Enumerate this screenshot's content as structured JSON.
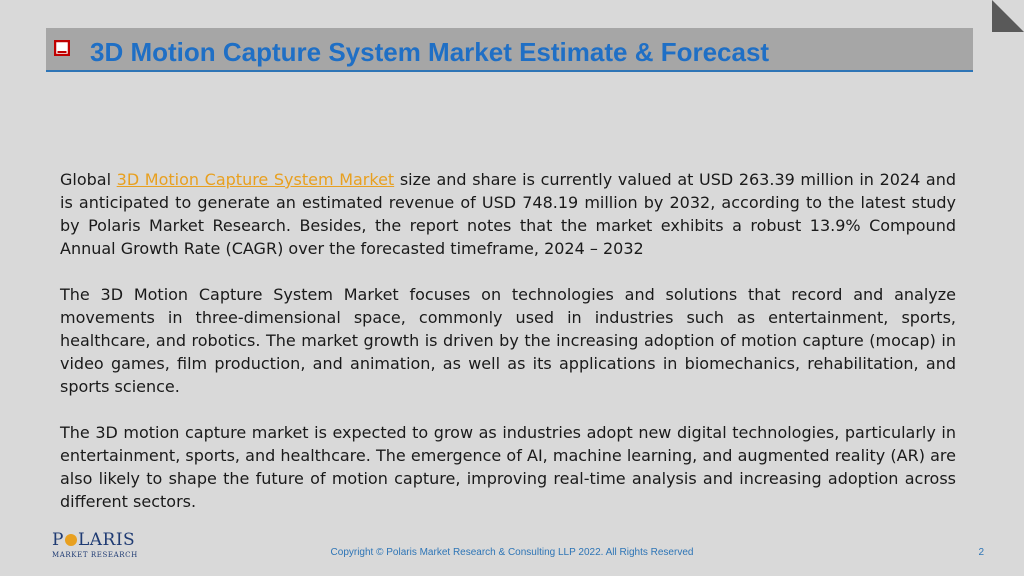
{
  "header": {
    "title": "3D Motion Capture System Market  Estimate & Forecast",
    "bullet_icon": "checkbox-icon"
  },
  "body": {
    "para1_prefix": "Global ",
    "para1_link": "3D Motion Capture System Market",
    "para1_rest": " size and share is currently valued at USD 263.39 million in 2024 and is anticipated to generate an estimated revenue of USD 748.19 million by 2032, according to the latest study by Polaris Market Research. Besides, the report notes that the market exhibits a robust 13.9% Compound Annual Growth Rate (CAGR) over the forecasted timeframe, 2024 – 2032",
    "para2": "The 3D Motion Capture System Market focuses on technologies and solutions that record and analyze movements in three-dimensional space, commonly used in industries such as entertainment, sports, healthcare, and robotics. The market growth is driven by the increasing adoption of motion capture (mocap) in video games, film production, and animation, as well as its applications in biomechanics, rehabilitation, and sports science.",
    "para3": "The 3D motion capture market is expected to grow as industries adopt new digital technologies, particularly in entertainment, sports, and healthcare. The emergence of AI, machine learning, and augmented reality (AR) are also likely to shape the future of motion capture, improving real-time analysis and increasing adoption across different sectors."
  },
  "logo": {
    "main_left": "P",
    "main_right": "LARIS",
    "sub": "MARKET RESEARCH"
  },
  "footer": {
    "copyright": "Copyright © Polaris Market Research & Consulting LLP 2022. All Rights Reserved",
    "page_number": "2"
  },
  "colors": {
    "accent": "#1f6fc5",
    "link": "#e8a020",
    "checkbox": "#c00000",
    "background": "#d9d9d9"
  }
}
